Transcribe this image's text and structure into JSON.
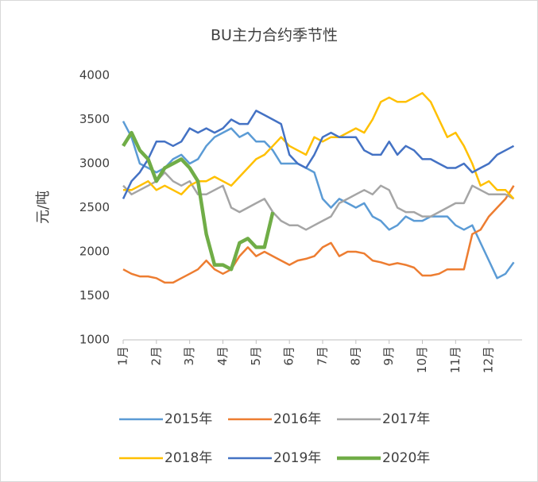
{
  "chart_data": {
    "type": "line",
    "title": "BU主力合约季节性",
    "y_label": "元/吨",
    "x": [
      1,
      1.25,
      1.5,
      1.75,
      2,
      2.25,
      2.5,
      2.75,
      3,
      3.25,
      3.5,
      3.75,
      4,
      4.25,
      4.5,
      4.75,
      5,
      5.25,
      5.5,
      5.75,
      6,
      6.25,
      6.5,
      6.75,
      7,
      7.25,
      7.5,
      7.75,
      8,
      8.25,
      8.5,
      8.75,
      9,
      9.25,
      9.5,
      9.75,
      10,
      10.25,
      10.5,
      10.75,
      11,
      11.25,
      11.5,
      11.75,
      12,
      12.25,
      12.5,
      12.75
    ],
    "xlim": [
      1,
      13
    ],
    "xticks": [
      {
        "value": 1,
        "label": "1月"
      },
      {
        "value": 2,
        "label": "2月"
      },
      {
        "value": 3,
        "label": "3月"
      },
      {
        "value": 4,
        "label": "4月"
      },
      {
        "value": 5,
        "label": "5月"
      },
      {
        "value": 6,
        "label": "6月"
      },
      {
        "value": 7,
        "label": "7月"
      },
      {
        "value": 8,
        "label": "8月"
      },
      {
        "value": 9,
        "label": "9月"
      },
      {
        "value": 10,
        "label": "10月"
      },
      {
        "value": 11,
        "label": "11月"
      },
      {
        "value": 12,
        "label": "12月"
      }
    ],
    "ylim": [
      1000,
      4000
    ],
    "yticks": [
      1000,
      1500,
      2000,
      2500,
      3000,
      3500,
      4000
    ],
    "grid": false,
    "series": [
      {
        "name": "2015年",
        "color": "#5b9bd5",
        "width": 2.5,
        "values": [
          3480,
          3300,
          3000,
          2950,
          2900,
          2950,
          3050,
          3100,
          3000,
          3050,
          3200,
          3300,
          3350,
          3400,
          3300,
          3350,
          3250,
          3250,
          3150,
          3000,
          3000,
          3000,
          2950,
          2900,
          2600,
          2500,
          2600,
          2550,
          2500,
          2550,
          2400,
          2350,
          2250,
          2300,
          2400,
          2350,
          2350,
          2400,
          2400,
          2400,
          2300,
          2250,
          2300,
          2100,
          1900,
          1700,
          1750,
          1880
        ]
      },
      {
        "name": "2016年",
        "color": "#ed7d31",
        "width": 2.5,
        "values": [
          1800,
          1750,
          1720,
          1720,
          1700,
          1650,
          1650,
          1700,
          1750,
          1800,
          1900,
          1800,
          1750,
          1800,
          1950,
          2050,
          1950,
          2000,
          1950,
          1900,
          1850,
          1900,
          1920,
          1950,
          2050,
          2100,
          1950,
          2000,
          2000,
          1980,
          1900,
          1880,
          1850,
          1870,
          1850,
          1820,
          1730,
          1730,
          1750,
          1800,
          1800,
          1800,
          2200,
          2250,
          2400,
          2500,
          2600,
          2750
        ]
      },
      {
        "name": "2017年",
        "color": "#a5a5a5",
        "width": 2.5,
        "values": [
          2750,
          2650,
          2700,
          2750,
          2800,
          2900,
          2800,
          2750,
          2800,
          2650,
          2650,
          2700,
          2750,
          2500,
          2450,
          2500,
          2550,
          2600,
          2450,
          2350,
          2300,
          2300,
          2250,
          2300,
          2350,
          2400,
          2550,
          2600,
          2650,
          2700,
          2650,
          2750,
          2700,
          2500,
          2450,
          2450,
          2400,
          2400,
          2450,
          2500,
          2550,
          2550,
          2750,
          2700,
          2650,
          2650,
          2650,
          2600
        ]
      },
      {
        "name": "2018年",
        "color": "#ffc000",
        "width": 2.5,
        "values": [
          2700,
          2700,
          2750,
          2800,
          2700,
          2750,
          2700,
          2650,
          2750,
          2800,
          2800,
          2850,
          2800,
          2750,
          2850,
          2950,
          3050,
          3100,
          3200,
          3300,
          3200,
          3150,
          3100,
          3300,
          3250,
          3300,
          3300,
          3350,
          3400,
          3350,
          3500,
          3700,
          3750,
          3700,
          3700,
          3750,
          3800,
          3700,
          3500,
          3300,
          3350,
          3200,
          3000,
          2750,
          2800,
          2700,
          2700,
          2600
        ]
      },
      {
        "name": "2019年",
        "color": "#4472c4",
        "width": 2.5,
        "values": [
          2600,
          2800,
          2900,
          3050,
          3250,
          3250,
          3200,
          3250,
          3400,
          3350,
          3400,
          3350,
          3400,
          3500,
          3450,
          3450,
          3600,
          3550,
          3500,
          3450,
          3100,
          3000,
          2950,
          3100,
          3300,
          3350,
          3300,
          3300,
          3300,
          3150,
          3100,
          3100,
          3250,
          3100,
          3200,
          3150,
          3050,
          3050,
          3000,
          2950,
          2950,
          3000,
          2900,
          2950,
          3000,
          3100,
          3150,
          3200
        ]
      },
      {
        "name": "2020年",
        "color": "#70ad47",
        "width": 4.5,
        "values": [
          3200,
          3350,
          3150,
          3050,
          2800,
          2950,
          3000,
          3050,
          2950,
          2800,
          2200,
          1850,
          1850,
          1800,
          2100,
          2150,
          2050,
          2050,
          2450,
          null,
          null,
          null,
          null,
          null,
          null,
          null,
          null,
          null,
          null,
          null,
          null,
          null,
          null,
          null,
          null,
          null,
          null,
          null,
          null,
          null,
          null,
          null,
          null,
          null,
          null,
          null,
          null,
          null
        ]
      }
    ]
  }
}
